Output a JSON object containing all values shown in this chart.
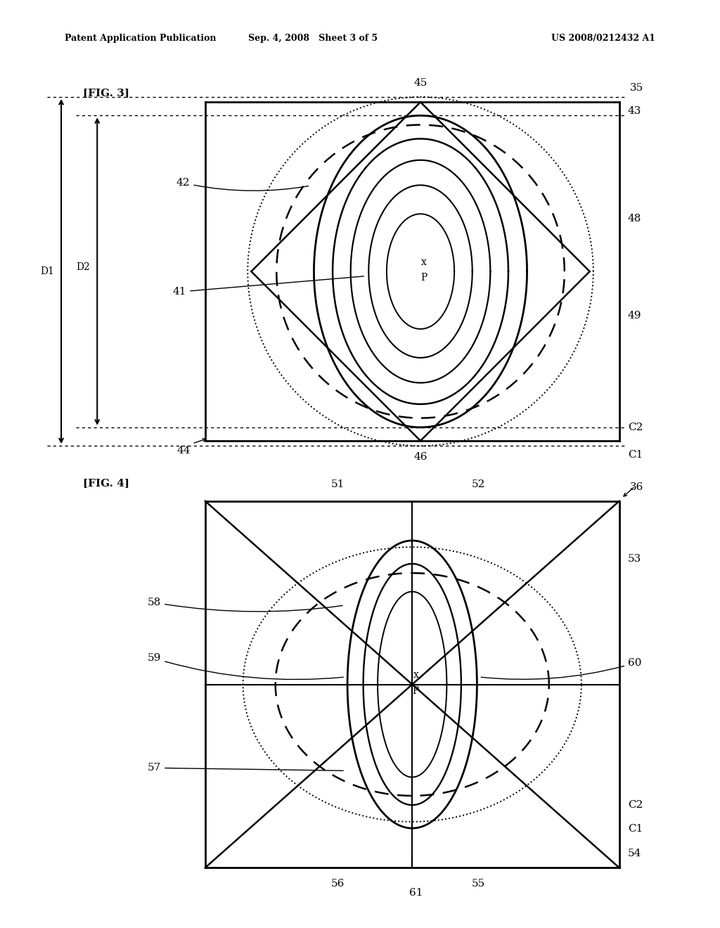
{
  "header_left": "Patent Application Publication",
  "header_mid": "Sep. 4, 2008   Sheet 3 of 5",
  "header_right": "US 2008/0212432 A1",
  "fig3_label": "[FIG. 3]",
  "fig4_label": "[FIG. 4]",
  "bg_color": "#ffffff"
}
